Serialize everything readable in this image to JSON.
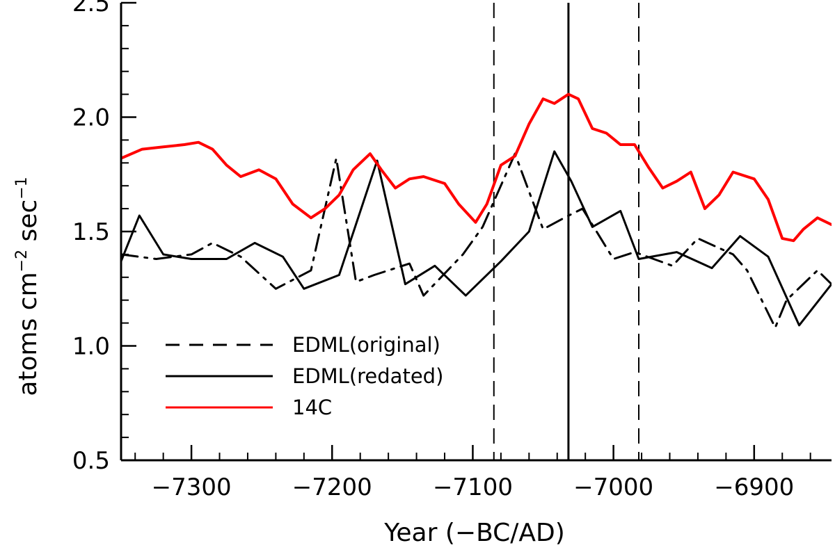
{
  "chart_data": {
    "type": "line",
    "title": "",
    "xlabel": "Year (−BC/AD)",
    "ylabel_main": "atoms cm",
    "ylabel_exp1": "−2",
    "ylabel_mid": " sec",
    "ylabel_exp2": "−1",
    "xlim": [
      -7350,
      -6845
    ],
    "ylim": [
      0.5,
      2.5
    ],
    "x_ticks": [
      -7300,
      -7200,
      -7100,
      -7000,
      -6900
    ],
    "x_tick_labels": [
      "−7300",
      "−7200",
      "−7100",
      "−7000",
      "−6900"
    ],
    "y_ticks": [
      0.5,
      1.0,
      1.5,
      2.0,
      2.5
    ],
    "y_tick_labels": [
      "0.5",
      "1.0",
      "1.5",
      "2.0",
      "2.5"
    ],
    "grid": false,
    "legend_position": "bottom-left",
    "vertical_lines": [
      {
        "x": -7085,
        "style": "dashed"
      },
      {
        "x": -7032,
        "style": "solid"
      },
      {
        "x": -6982,
        "style": "dashed"
      }
    ],
    "series": [
      {
        "name": "EDML(original)",
        "style": "dash-dot",
        "color": "#000000",
        "x": [
          -7350,
          -7325,
          -7300,
          -7285,
          -7265,
          -7240,
          -7215,
          -7197,
          -7183,
          -7170,
          -7145,
          -7135,
          -7107,
          -7093,
          -7070,
          -7050,
          -7035,
          -7022,
          -7000,
          -6985,
          -6958,
          -6940,
          -6915,
          -6905,
          -6885,
          -6877,
          -6855,
          -6845
        ],
        "values": [
          1.4,
          1.38,
          1.4,
          1.45,
          1.39,
          1.25,
          1.33,
          1.82,
          1.28,
          1.31,
          1.36,
          1.22,
          1.4,
          1.52,
          1.84,
          1.51,
          1.56,
          1.6,
          1.38,
          1.41,
          1.35,
          1.47,
          1.4,
          1.33,
          1.08,
          1.2,
          1.33,
          1.27
        ]
      },
      {
        "name": "EDML(redated)",
        "style": "solid",
        "color": "#000000",
        "x": [
          -7350,
          -7337,
          -7320,
          -7300,
          -7275,
          -7255,
          -7235,
          -7220,
          -7195,
          -7168,
          -7148,
          -7127,
          -7105,
          -7080,
          -7060,
          -7042,
          -7030,
          -7015,
          -6995,
          -6982,
          -6955,
          -6930,
          -6910,
          -6890,
          -6868,
          -6845
        ],
        "values": [
          1.37,
          1.57,
          1.4,
          1.38,
          1.38,
          1.45,
          1.39,
          1.25,
          1.31,
          1.81,
          1.27,
          1.35,
          1.22,
          1.37,
          1.5,
          1.85,
          1.72,
          1.52,
          1.59,
          1.38,
          1.41,
          1.34,
          1.48,
          1.39,
          1.09,
          1.27
        ]
      },
      {
        "name": "14C",
        "style": "solid",
        "color": "#ff0000",
        "x": [
          -7350,
          -7335,
          -7320,
          -7305,
          -7295,
          -7285,
          -7275,
          -7265,
          -7252,
          -7240,
          -7228,
          -7215,
          -7205,
          -7195,
          -7185,
          -7173,
          -7165,
          -7155,
          -7145,
          -7135,
          -7120,
          -7110,
          -7098,
          -7090,
          -7080,
          -7070,
          -7060,
          -7050,
          -7042,
          -7032,
          -7025,
          -7015,
          -7005,
          -6995,
          -6985,
          -6975,
          -6965,
          -6955,
          -6945,
          -6935,
          -6925,
          -6915,
          -6900,
          -6890,
          -6880,
          -6872,
          -6865,
          -6855,
          -6845
        ],
        "values": [
          1.82,
          1.86,
          1.87,
          1.88,
          1.89,
          1.86,
          1.79,
          1.74,
          1.77,
          1.73,
          1.62,
          1.56,
          1.6,
          1.66,
          1.77,
          1.84,
          1.77,
          1.69,
          1.73,
          1.74,
          1.71,
          1.62,
          1.54,
          1.62,
          1.79,
          1.83,
          1.97,
          2.08,
          2.06,
          2.1,
          2.08,
          1.95,
          1.93,
          1.88,
          1.88,
          1.78,
          1.69,
          1.72,
          1.76,
          1.6,
          1.66,
          1.76,
          1.73,
          1.64,
          1.47,
          1.46,
          1.51,
          1.56,
          1.53
        ]
      }
    ]
  }
}
